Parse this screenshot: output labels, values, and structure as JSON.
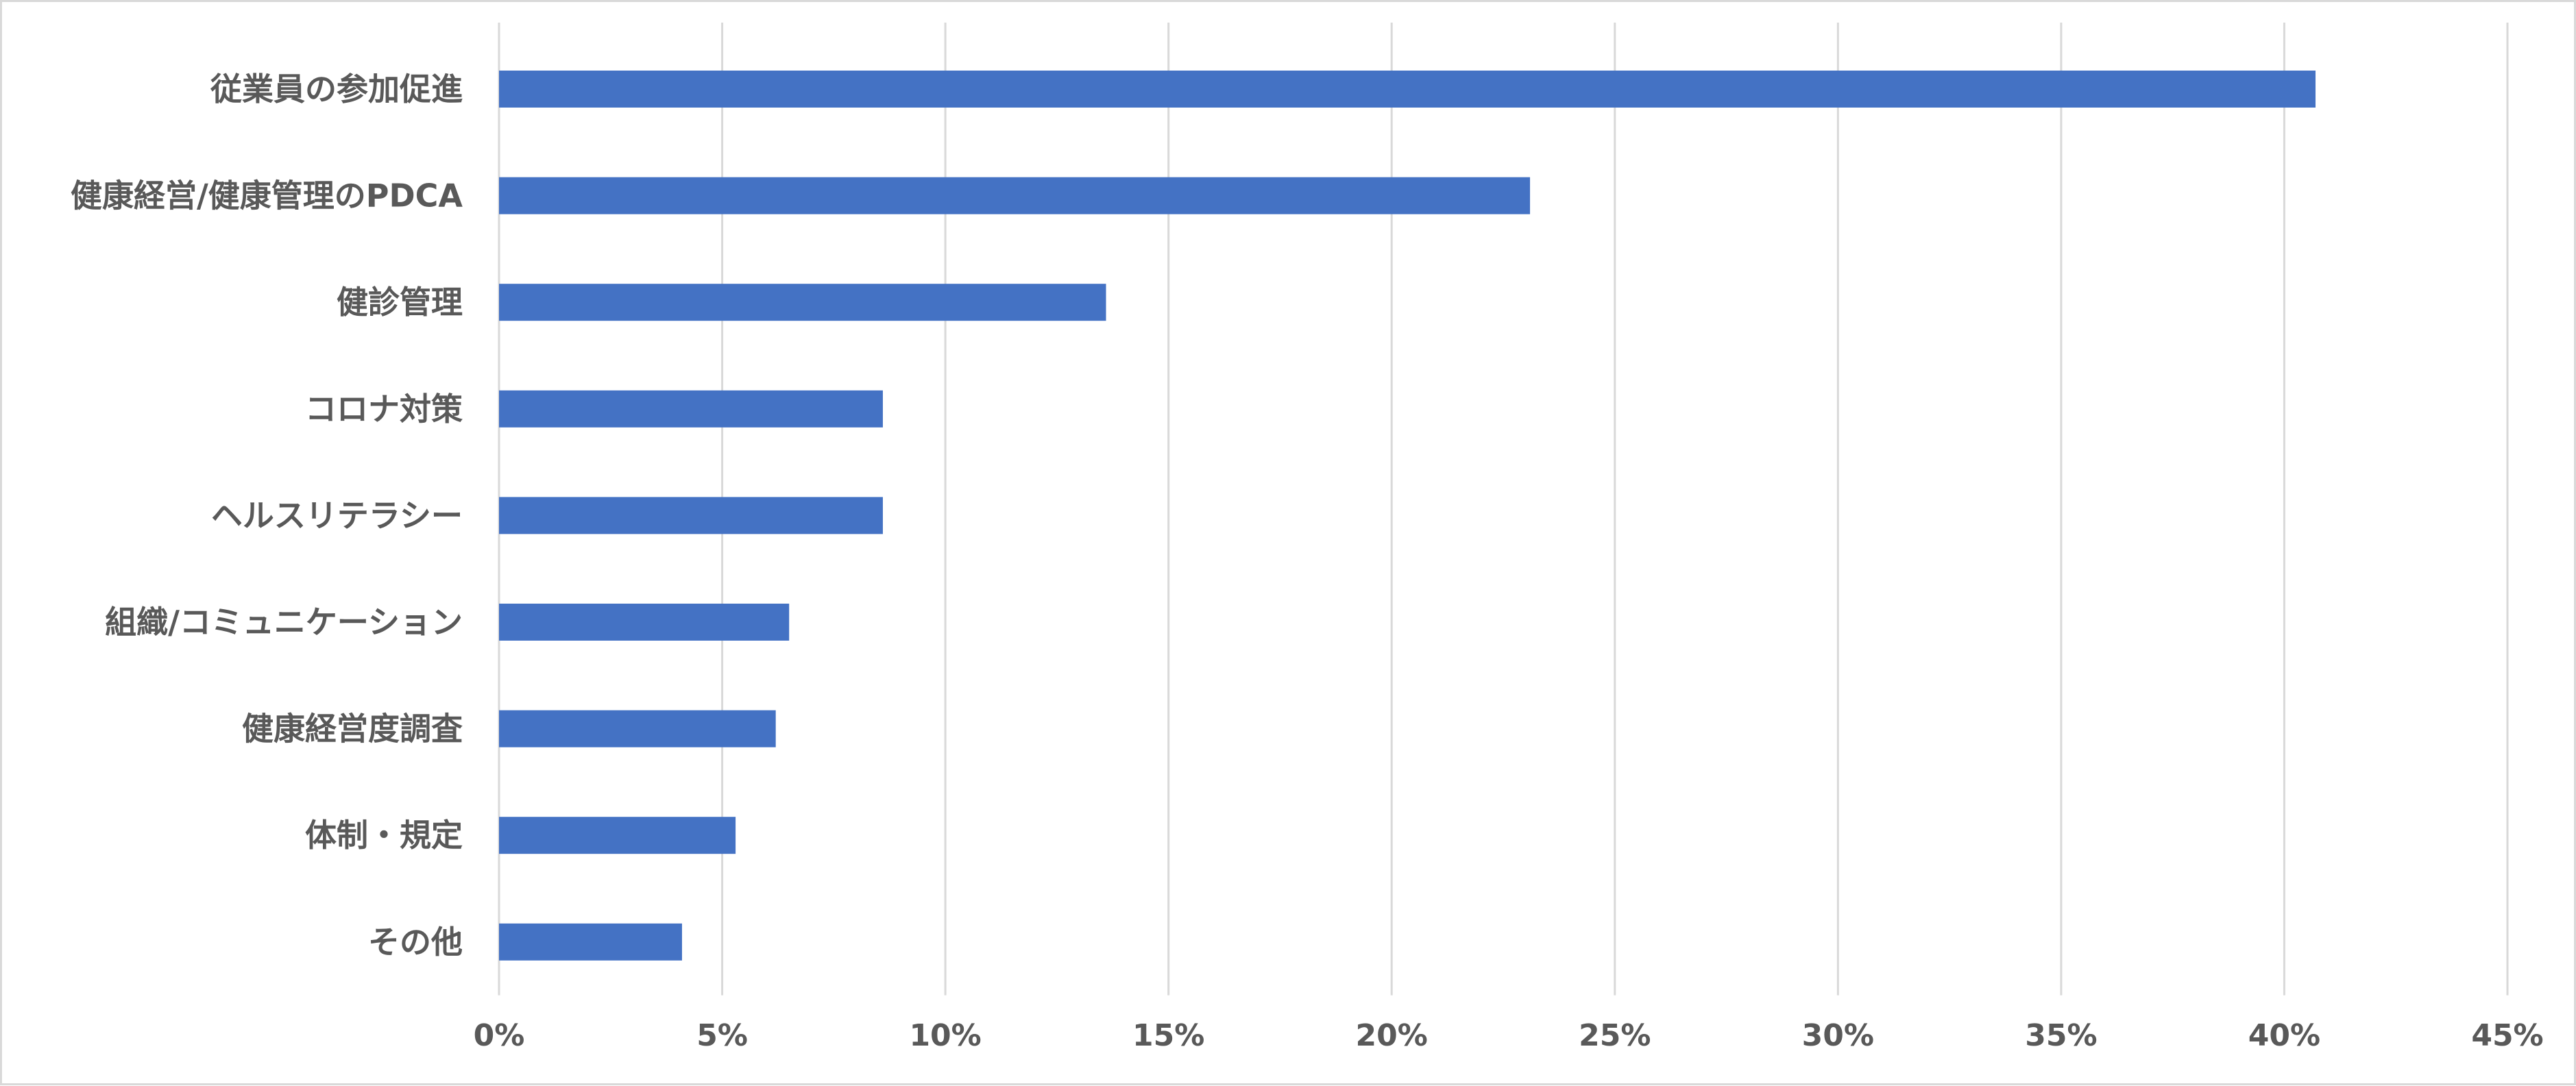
{
  "chart_data": {
    "type": "bar",
    "orientation": "horizontal",
    "categories": [
      "従業員の参加促進",
      "健康経営/健康管理のPDCA",
      "健診管理",
      "コロナ対策",
      "ヘルスリテラシー",
      "組織/コミュニケーション",
      "健康経営度調査",
      "体制・規定",
      "その他"
    ],
    "values": [
      40.7,
      23.1,
      13.6,
      8.6,
      8.6,
      6.5,
      6.2,
      5.3,
      4.1
    ],
    "xlim": [
      0,
      45
    ],
    "xticks": [
      0,
      5,
      10,
      15,
      20,
      25,
      30,
      35,
      40,
      45
    ],
    "xtick_labels": [
      "0%",
      "5%",
      "10%",
      "15%",
      "20%",
      "25%",
      "30%",
      "35%",
      "40%",
      "45%"
    ],
    "grid": "vertical",
    "legend": "none",
    "title": "",
    "xlabel": "",
    "ylabel": "",
    "colors": {
      "bar": "#4472c4",
      "grid": "#d9d9d9",
      "text": "#595959"
    }
  }
}
